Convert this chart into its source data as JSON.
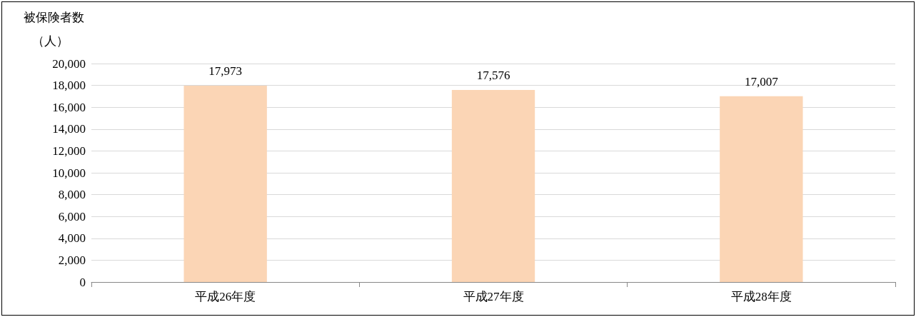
{
  "chart_data": {
    "type": "bar",
    "ylabel": "被保険者数",
    "annotations": [
      "（人）"
    ],
    "categories": [
      "平成26年度",
      "平成27年度",
      "平成28年度"
    ],
    "values": [
      17973,
      17576,
      17007
    ],
    "value_labels": [
      "17,973",
      "17,576",
      "17,007"
    ],
    "color": "#fbd5b5",
    "ylim": [
      0,
      20000
    ],
    "yticks": [
      0,
      {
        "value": 2000,
        "label": "2,000"
      },
      {
        "value": 4000,
        "label": "4,000"
      },
      {
        "value": 6000,
        "label": "6,000"
      },
      {
        "value": 8000,
        "label": "8,000"
      },
      {
        "value": 10000,
        "label": "10,000"
      },
      {
        "value": 12000,
        "label": "12,000"
      },
      {
        "value": 14000,
        "label": "14,000"
      },
      {
        "value": 16000,
        "label": "16,000"
      },
      {
        "value": 18000,
        "label": "18,000"
      },
      {
        "value": 20000,
        "label": "20,000"
      }
    ],
    "grid": "y"
  }
}
